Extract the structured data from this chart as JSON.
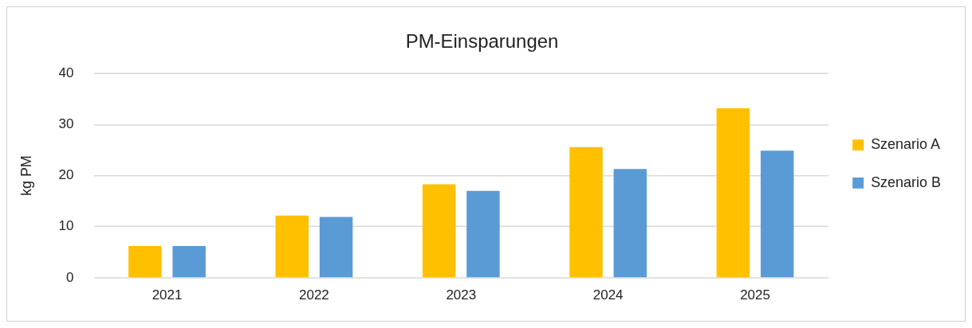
{
  "chart_data": {
    "type": "bar",
    "title": "PM-Einsparungen",
    "ylabel": "kg PM",
    "categories": [
      "2021",
      "2022",
      "2023",
      "2024",
      "2025"
    ],
    "series": [
      {
        "name": "Szenario A",
        "color": "#ffc000",
        "values": [
          6.2,
          12.2,
          18.3,
          25.6,
          33.2
        ]
      },
      {
        "name": "Szenario B",
        "color": "#5b9bd5",
        "values": [
          6.2,
          11.9,
          17.0,
          21.3,
          24.9
        ]
      }
    ],
    "ylim": [
      0,
      40
    ],
    "yticks": [
      0,
      10,
      20,
      30,
      40
    ],
    "grid": "y",
    "legend": "right"
  }
}
